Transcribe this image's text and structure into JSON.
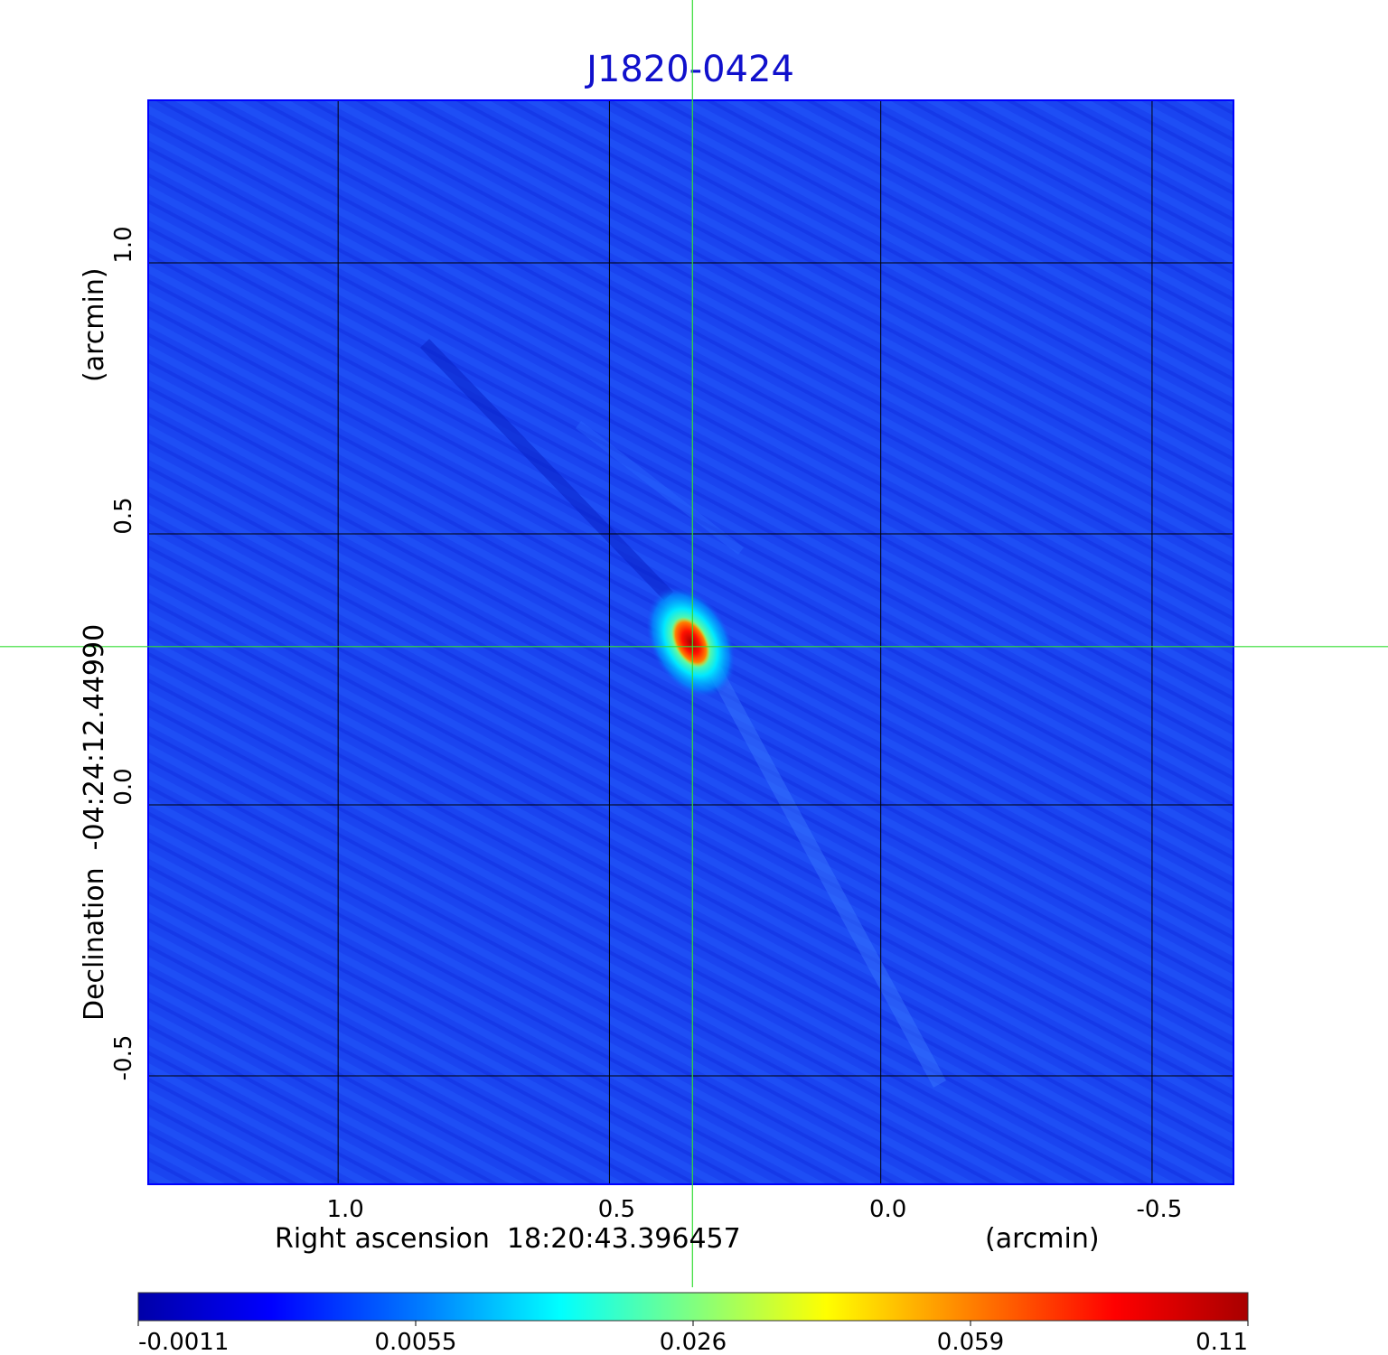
{
  "chart_data": {
    "type": "heatmap",
    "title": "J1820-0424",
    "xlabel": "Right ascension  18:20:43.396457",
    "xunit": "(arcmin)",
    "ylabel": "Declination  -04:24:12.44990",
    "yunit": "(arcmin)",
    "xlim": [
      1.35,
      -0.65
    ],
    "ylim": [
      -0.7,
      1.3
    ],
    "x_ticks": [
      1.0,
      0.5,
      0.0,
      -0.5
    ],
    "x_tick_labels": [
      "1.0",
      "0.5",
      "0.0",
      "-0.5"
    ],
    "y_ticks": [
      1.0,
      0.5,
      0.0,
      -0.5
    ],
    "y_tick_labels": [
      "1.0",
      "0.5",
      "0.0",
      "-0.5"
    ],
    "grid": true,
    "crosshair": {
      "x": 0.347,
      "y": 0.292,
      "color": "#33dd33"
    },
    "source": {
      "x": 0.35,
      "y": 0.3,
      "peak": 0.11
    },
    "colorbar": {
      "tick_labels": [
        "-0.0011",
        "0.0055",
        "0.026",
        "0.059",
        "0.11"
      ],
      "colors": [
        "#0000a8",
        "#0000ff",
        "#0080ff",
        "#00ffff",
        "#80ff80",
        "#ffff00",
        "#ff8000",
        "#ff0000",
        "#a80000"
      ]
    },
    "colors": {
      "title": "#1010cc",
      "frame": "#0000ff",
      "grid": "#000000",
      "background_map": "#1a44f0"
    }
  }
}
